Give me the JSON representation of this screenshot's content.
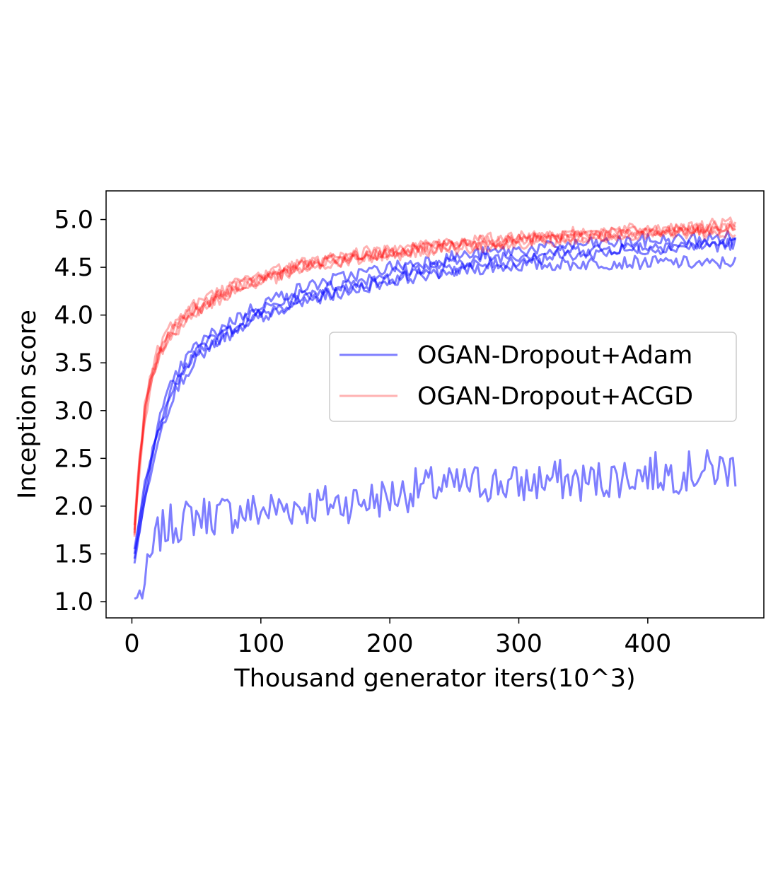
{
  "chart_data": {
    "type": "line",
    "xlabel": "Thousand generator iters(10^3)",
    "ylabel": "Inception score",
    "xlim": [
      -20,
      490
    ],
    "ylim": [
      0.83,
      5.3
    ],
    "xticks": [
      0,
      100,
      200,
      300,
      400
    ],
    "yticks": [
      1.0,
      1.5,
      2.0,
      2.5,
      3.0,
      3.5,
      4.0,
      4.5,
      5.0
    ],
    "xtick_labels": [
      "0",
      "100",
      "200",
      "300",
      "400"
    ],
    "ytick_labels": [
      "1.0",
      "1.5",
      "2.0",
      "2.5",
      "3.0",
      "3.5",
      "4.0",
      "4.5",
      "5.0"
    ],
    "legend": {
      "placement": "center-right",
      "entries": [
        {
          "label": "OGAN-Dropout+Adam",
          "color": "#0000ff"
        },
        {
          "label": "OGAN-Dropout+ACGD",
          "color": "#ff0000"
        }
      ]
    },
    "grid": false,
    "series": [
      {
        "name": "OGAN-Dropout+Adam",
        "color": "#0000ff",
        "alpha": 0.5,
        "points": [
          [
            2,
            1.03
          ],
          [
            5,
            1.05
          ],
          [
            10,
            1.17
          ],
          [
            15,
            1.45
          ],
          [
            20,
            1.7
          ],
          [
            30,
            1.8
          ],
          [
            40,
            1.85
          ],
          [
            50,
            1.9
          ],
          [
            75,
            1.92
          ],
          [
            100,
            1.95
          ],
          [
            125,
            2.0
          ],
          [
            150,
            2.02
          ],
          [
            175,
            2.05
          ],
          [
            200,
            2.1
          ],
          [
            225,
            2.2
          ],
          [
            250,
            2.2
          ],
          [
            275,
            2.25
          ],
          [
            300,
            2.22
          ],
          [
            325,
            2.28
          ],
          [
            350,
            2.25
          ],
          [
            375,
            2.3
          ],
          [
            400,
            2.35
          ],
          [
            425,
            2.35
          ],
          [
            450,
            2.38
          ],
          [
            468,
            2.4
          ]
        ]
      },
      {
        "name": "OGAN-Dropout+Adam",
        "color": "#0000ff",
        "alpha": 0.5,
        "points": [
          [
            2,
            1.45
          ],
          [
            5,
            1.7
          ],
          [
            10,
            2.1
          ],
          [
            15,
            2.45
          ],
          [
            20,
            2.75
          ],
          [
            30,
            3.15
          ],
          [
            40,
            3.4
          ],
          [
            50,
            3.6
          ],
          [
            75,
            3.82
          ],
          [
            100,
            4.0
          ],
          [
            125,
            4.12
          ],
          [
            150,
            4.22
          ],
          [
            175,
            4.3
          ],
          [
            200,
            4.38
          ],
          [
            225,
            4.42
          ],
          [
            250,
            4.46
          ],
          [
            275,
            4.5
          ],
          [
            300,
            4.52
          ],
          [
            325,
            4.53
          ],
          [
            350,
            4.54
          ],
          [
            375,
            4.55
          ],
          [
            400,
            4.55
          ],
          [
            425,
            4.55
          ],
          [
            450,
            4.53
          ],
          [
            468,
            4.57
          ]
        ]
      },
      {
        "name": "OGAN-Dropout+Adam",
        "color": "#0000ff",
        "alpha": 0.5,
        "points": [
          [
            2,
            1.5
          ],
          [
            5,
            1.75
          ],
          [
            10,
            2.15
          ],
          [
            15,
            2.5
          ],
          [
            20,
            2.8
          ],
          [
            30,
            3.2
          ],
          [
            40,
            3.45
          ],
          [
            50,
            3.62
          ],
          [
            75,
            3.85
          ],
          [
            100,
            4.05
          ],
          [
            125,
            4.18
          ],
          [
            150,
            4.28
          ],
          [
            175,
            4.36
          ],
          [
            200,
            4.44
          ],
          [
            225,
            4.5
          ],
          [
            250,
            4.55
          ],
          [
            275,
            4.6
          ],
          [
            300,
            4.63
          ],
          [
            325,
            4.66
          ],
          [
            350,
            4.68
          ],
          [
            375,
            4.7
          ],
          [
            400,
            4.72
          ],
          [
            425,
            4.73
          ],
          [
            450,
            4.74
          ],
          [
            468,
            4.75
          ]
        ]
      },
      {
        "name": "OGAN-Dropout+Adam",
        "color": "#0000ff",
        "alpha": 0.5,
        "points": [
          [
            2,
            1.55
          ],
          [
            5,
            1.8
          ],
          [
            10,
            2.2
          ],
          [
            15,
            2.55
          ],
          [
            20,
            2.85
          ],
          [
            30,
            3.25
          ],
          [
            40,
            3.5
          ],
          [
            50,
            3.68
          ],
          [
            75,
            3.92
          ],
          [
            100,
            4.12
          ],
          [
            125,
            4.25
          ],
          [
            150,
            4.35
          ],
          [
            175,
            4.43
          ],
          [
            200,
            4.5
          ],
          [
            225,
            4.56
          ],
          [
            250,
            4.61
          ],
          [
            275,
            4.65
          ],
          [
            300,
            4.68
          ],
          [
            325,
            4.71
          ],
          [
            350,
            4.74
          ],
          [
            375,
            4.76
          ],
          [
            400,
            4.78
          ],
          [
            425,
            4.79
          ],
          [
            450,
            4.8
          ],
          [
            468,
            4.82
          ]
        ]
      },
      {
        "name": "OGAN-Dropout+Adam",
        "color": "#0000ff",
        "alpha": 0.5,
        "points": [
          [
            2,
            1.4
          ],
          [
            5,
            1.65
          ],
          [
            10,
            2.05
          ],
          [
            15,
            2.4
          ],
          [
            20,
            2.7
          ],
          [
            30,
            3.1
          ],
          [
            40,
            3.35
          ],
          [
            50,
            3.55
          ],
          [
            75,
            3.78
          ],
          [
            100,
            3.98
          ],
          [
            125,
            4.1
          ],
          [
            150,
            4.2
          ],
          [
            175,
            4.28
          ],
          [
            200,
            4.36
          ],
          [
            225,
            4.42
          ],
          [
            250,
            4.48
          ],
          [
            275,
            4.53
          ],
          [
            300,
            4.57
          ],
          [
            325,
            4.61
          ],
          [
            350,
            4.64
          ],
          [
            375,
            4.67
          ],
          [
            400,
            4.7
          ],
          [
            425,
            4.72
          ],
          [
            450,
            4.73
          ],
          [
            468,
            4.75
          ]
        ]
      },
      {
        "name": "OGAN-Dropout+ACGD",
        "color": "#ff0000",
        "alpha": 0.3,
        "points": [
          [
            2,
            1.7
          ],
          [
            5,
            2.3
          ],
          [
            10,
            2.95
          ],
          [
            15,
            3.3
          ],
          [
            20,
            3.55
          ],
          [
            30,
            3.8
          ],
          [
            40,
            3.95
          ],
          [
            50,
            4.05
          ],
          [
            75,
            4.25
          ],
          [
            100,
            4.38
          ],
          [
            125,
            4.47
          ],
          [
            150,
            4.55
          ],
          [
            175,
            4.6
          ],
          [
            200,
            4.65
          ],
          [
            225,
            4.69
          ],
          [
            250,
            4.72
          ],
          [
            275,
            4.75
          ],
          [
            300,
            4.78
          ],
          [
            325,
            4.8
          ],
          [
            350,
            4.82
          ],
          [
            375,
            4.84
          ],
          [
            400,
            4.86
          ],
          [
            425,
            4.88
          ],
          [
            450,
            4.9
          ],
          [
            468,
            4.92
          ]
        ]
      },
      {
        "name": "OGAN-Dropout+ACGD",
        "color": "#ff0000",
        "alpha": 0.3,
        "points": [
          [
            2,
            1.75
          ],
          [
            5,
            2.35
          ],
          [
            10,
            3.0
          ],
          [
            15,
            3.35
          ],
          [
            20,
            3.6
          ],
          [
            30,
            3.84
          ],
          [
            40,
            3.98
          ],
          [
            50,
            4.08
          ],
          [
            75,
            4.28
          ],
          [
            100,
            4.4
          ],
          [
            125,
            4.5
          ],
          [
            150,
            4.57
          ],
          [
            175,
            4.62
          ],
          [
            200,
            4.67
          ],
          [
            225,
            4.71
          ],
          [
            250,
            4.74
          ],
          [
            275,
            4.77
          ],
          [
            300,
            4.8
          ],
          [
            325,
            4.82
          ],
          [
            350,
            4.84
          ],
          [
            375,
            4.86
          ],
          [
            400,
            4.88
          ],
          [
            425,
            4.9
          ],
          [
            450,
            4.92
          ],
          [
            468,
            4.95
          ]
        ]
      },
      {
        "name": "OGAN-Dropout+ACGD",
        "color": "#ff0000",
        "alpha": 0.3,
        "points": [
          [
            2,
            1.68
          ],
          [
            5,
            2.28
          ],
          [
            10,
            2.92
          ],
          [
            15,
            3.28
          ],
          [
            20,
            3.52
          ],
          [
            30,
            3.78
          ],
          [
            40,
            3.92
          ],
          [
            50,
            4.02
          ],
          [
            75,
            4.22
          ],
          [
            100,
            4.35
          ],
          [
            125,
            4.45
          ],
          [
            150,
            4.52
          ],
          [
            175,
            4.58
          ],
          [
            200,
            4.63
          ],
          [
            225,
            4.67
          ],
          [
            250,
            4.7
          ],
          [
            275,
            4.73
          ],
          [
            300,
            4.76
          ],
          [
            325,
            4.78
          ],
          [
            350,
            4.8
          ],
          [
            375,
            4.82
          ],
          [
            400,
            4.84
          ],
          [
            425,
            4.86
          ],
          [
            450,
            4.87
          ],
          [
            468,
            4.88
          ]
        ]
      },
      {
        "name": "OGAN-Dropout+ACGD",
        "color": "#ff0000",
        "alpha": 0.3,
        "points": [
          [
            2,
            1.8
          ],
          [
            5,
            2.4
          ],
          [
            10,
            3.05
          ],
          [
            15,
            3.4
          ],
          [
            20,
            3.64
          ],
          [
            30,
            3.88
          ],
          [
            40,
            4.02
          ],
          [
            50,
            4.12
          ],
          [
            75,
            4.3
          ],
          [
            100,
            4.42
          ],
          [
            125,
            4.52
          ],
          [
            150,
            4.58
          ],
          [
            175,
            4.64
          ],
          [
            200,
            4.68
          ],
          [
            225,
            4.72
          ],
          [
            250,
            4.76
          ],
          [
            275,
            4.79
          ],
          [
            300,
            4.82
          ],
          [
            325,
            4.84
          ],
          [
            350,
            4.86
          ],
          [
            375,
            4.88
          ],
          [
            400,
            4.9
          ],
          [
            425,
            4.92
          ],
          [
            450,
            4.94
          ],
          [
            468,
            4.96
          ]
        ]
      },
      {
        "name": "OGAN-Dropout+ACGD",
        "color": "#ff0000",
        "alpha": 0.3,
        "points": [
          [
            2,
            1.72
          ],
          [
            5,
            2.32
          ],
          [
            10,
            2.98
          ],
          [
            15,
            3.32
          ],
          [
            20,
            3.57
          ],
          [
            30,
            3.82
          ],
          [
            40,
            3.96
          ],
          [
            50,
            4.06
          ],
          [
            75,
            4.26
          ],
          [
            100,
            4.38
          ],
          [
            125,
            4.48
          ],
          [
            150,
            4.55
          ],
          [
            175,
            4.6
          ],
          [
            200,
            4.65
          ],
          [
            225,
            4.69
          ],
          [
            250,
            4.72
          ],
          [
            275,
            4.75
          ],
          [
            300,
            4.78
          ],
          [
            325,
            4.8
          ],
          [
            350,
            4.82
          ],
          [
            375,
            4.84
          ],
          [
            400,
            4.86
          ],
          [
            425,
            4.88
          ],
          [
            450,
            4.89
          ],
          [
            468,
            4.9
          ]
        ]
      }
    ]
  }
}
